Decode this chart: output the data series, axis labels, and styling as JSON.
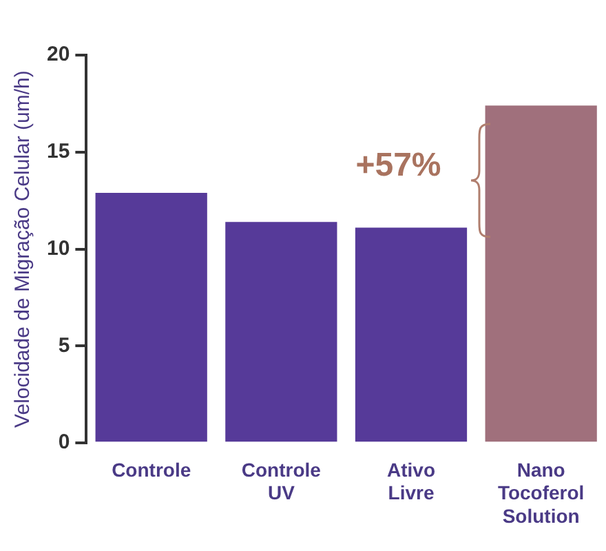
{
  "chart_data": {
    "type": "bar",
    "ylabel": "Velocidade de Migração Celular (um/h)",
    "categories": [
      "Controle",
      "Controle UV",
      "Ativo Livre",
      "Nano Tocoferol Solution"
    ],
    "values": [
      12.9,
      11.4,
      11.1,
      17.4
    ],
    "colors": [
      "#563a99",
      "#563a99",
      "#563a99",
      "#a0707c"
    ],
    "ylim": [
      0,
      20
    ],
    "yticks": [
      0,
      5,
      10,
      15,
      20
    ],
    "grid": false,
    "legend": false,
    "annotations": [
      "+57%"
    ]
  }
}
